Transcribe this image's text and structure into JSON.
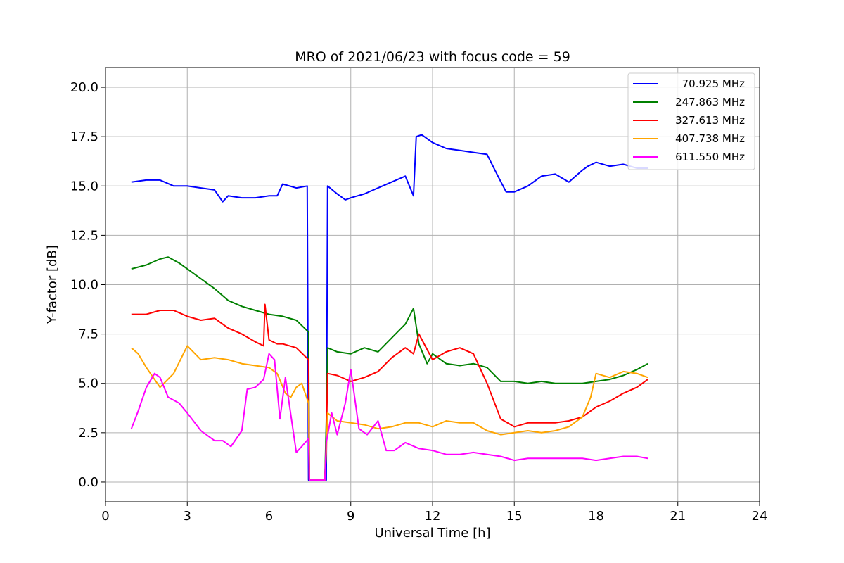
{
  "chart_data": {
    "type": "line",
    "title": "MRO of 2021/06/23 with focus code = 59",
    "xlabel": "Universal Time [h]",
    "ylabel": "Y-factor [dB]",
    "xlim": [
      0,
      24
    ],
    "ylim": [
      -1.0,
      21.0
    ],
    "xticks": [
      0,
      3,
      6,
      9,
      12,
      15,
      18,
      21,
      24
    ],
    "yticks": [
      0.0,
      2.5,
      5.0,
      7.5,
      10.0,
      12.5,
      15.0,
      17.5,
      20.0
    ],
    "xtick_labels": [
      "0",
      "3",
      "6",
      "9",
      "12",
      "15",
      "18",
      "21",
      "24"
    ],
    "ytick_labels": [
      "0.0",
      "2.5",
      "5.0",
      "7.5",
      "10.0",
      "12.5",
      "15.0",
      "17.5",
      "20.0"
    ],
    "grid": true,
    "legend_position": "top-right",
    "series": [
      {
        "name": "70.925 MHz",
        "color": "#0000ff",
        "x": [
          0.95,
          1.5,
          2.0,
          2.5,
          3.0,
          3.5,
          4.0,
          4.3,
          4.5,
          5.0,
          5.5,
          6.0,
          6.3,
          6.5,
          7.0,
          7.4,
          7.45,
          7.48,
          8.0,
          8.05,
          8.1,
          8.15,
          8.5,
          8.8,
          9.0,
          9.5,
          10.0,
          10.5,
          11.0,
          11.3,
          11.4,
          11.6,
          12.0,
          12.5,
          13.0,
          13.5,
          14.0,
          14.4,
          14.7,
          15.0,
          15.5,
          16.0,
          16.5,
          17.0,
          17.5,
          17.7,
          18.0,
          18.5,
          19.0,
          19.5,
          19.9
        ],
        "y": [
          15.2,
          15.3,
          15.3,
          15.0,
          15.0,
          14.9,
          14.8,
          14.2,
          14.5,
          14.4,
          14.4,
          14.5,
          14.5,
          15.1,
          14.9,
          15.0,
          0.1,
          0.1,
          0.1,
          0.1,
          0.1,
          15.0,
          14.6,
          14.3,
          14.4,
          14.6,
          14.9,
          15.2,
          15.5,
          14.5,
          17.5,
          17.6,
          17.2,
          16.9,
          16.8,
          16.7,
          16.6,
          15.5,
          14.7,
          14.7,
          15.0,
          15.5,
          15.6,
          15.2,
          15.8,
          16.0,
          16.2,
          16.0,
          16.1,
          15.9,
          15.9
        ]
      },
      {
        "name": "247.863 MHz",
        "color": "#008000",
        "x": [
          0.95,
          1.5,
          2.0,
          2.3,
          2.7,
          3.0,
          3.5,
          4.0,
          4.5,
          5.0,
          5.5,
          6.0,
          6.5,
          7.0,
          7.45,
          7.48,
          8.0,
          8.05,
          8.1,
          8.15,
          8.5,
          9.0,
          9.5,
          10.0,
          10.5,
          11.0,
          11.3,
          11.5,
          11.8,
          12.0,
          12.5,
          13.0,
          13.5,
          14.0,
          14.5,
          15.0,
          15.5,
          16.0,
          16.5,
          17.0,
          17.5,
          18.0,
          18.5,
          19.0,
          19.5,
          19.9
        ],
        "y": [
          10.8,
          11.0,
          11.3,
          11.4,
          11.1,
          10.8,
          10.3,
          9.8,
          9.2,
          8.9,
          8.7,
          8.5,
          8.4,
          8.2,
          7.6,
          0.1,
          0.1,
          0.1,
          3.0,
          6.8,
          6.6,
          6.5,
          6.8,
          6.6,
          7.3,
          8.0,
          8.8,
          7.0,
          6.0,
          6.5,
          6.0,
          5.9,
          6.0,
          5.8,
          5.1,
          5.1,
          5.0,
          5.1,
          5.0,
          5.0,
          5.0,
          5.1,
          5.2,
          5.4,
          5.7,
          6.0
        ]
      },
      {
        "name": "327.613 MHz",
        "color": "#ff0000",
        "x": [
          0.95,
          1.5,
          2.0,
          2.5,
          3.0,
          3.5,
          4.0,
          4.5,
          5.0,
          5.5,
          5.8,
          5.85,
          6.0,
          6.3,
          6.5,
          7.0,
          7.45,
          7.48,
          8.0,
          8.05,
          8.1,
          8.15,
          8.5,
          9.0,
          9.5,
          10.0,
          10.5,
          11.0,
          11.3,
          11.5,
          12.0,
          12.5,
          13.0,
          13.5,
          14.0,
          14.5,
          15.0,
          15.5,
          16.0,
          16.5,
          17.0,
          17.5,
          18.0,
          18.5,
          19.0,
          19.5,
          19.9
        ],
        "y": [
          8.5,
          8.5,
          8.7,
          8.7,
          8.4,
          8.2,
          8.3,
          7.8,
          7.5,
          7.1,
          6.9,
          9.0,
          7.2,
          7.0,
          7.0,
          6.8,
          6.2,
          0.1,
          0.1,
          0.1,
          2.0,
          5.5,
          5.4,
          5.1,
          5.3,
          5.6,
          6.3,
          6.8,
          6.5,
          7.5,
          6.2,
          6.6,
          6.8,
          6.5,
          5.0,
          3.2,
          2.8,
          3.0,
          3.0,
          3.0,
          3.1,
          3.3,
          3.8,
          4.1,
          4.5,
          4.8,
          5.2
        ]
      },
      {
        "name": "407.738 MHz",
        "color": "#ffa500",
        "x": [
          0.95,
          1.2,
          1.5,
          2.0,
          2.5,
          3.0,
          3.5,
          4.0,
          4.5,
          5.0,
          5.5,
          6.0,
          6.3,
          6.6,
          6.8,
          7.0,
          7.2,
          7.45,
          7.48,
          8.0,
          8.05,
          8.1,
          8.15,
          8.5,
          9.0,
          9.5,
          10.0,
          10.5,
          11.0,
          11.5,
          12.0,
          12.5,
          13.0,
          13.5,
          14.0,
          14.5,
          15.0,
          15.5,
          16.0,
          16.5,
          17.0,
          17.5,
          17.8,
          18.0,
          18.5,
          19.0,
          19.5,
          19.9
        ],
        "y": [
          6.8,
          6.5,
          5.8,
          4.8,
          5.5,
          6.9,
          6.2,
          6.3,
          6.2,
          6.0,
          5.9,
          5.8,
          5.5,
          4.5,
          4.3,
          4.8,
          5.0,
          4.0,
          0.1,
          0.1,
          0.1,
          1.5,
          3.5,
          3.1,
          3.0,
          2.9,
          2.7,
          2.8,
          3.0,
          3.0,
          2.8,
          3.1,
          3.0,
          3.0,
          2.6,
          2.4,
          2.5,
          2.6,
          2.5,
          2.6,
          2.8,
          3.3,
          4.3,
          5.5,
          5.3,
          5.6,
          5.5,
          5.3
        ]
      },
      {
        "name": "611.550 MHz",
        "color": "#ff00ff",
        "x": [
          0.95,
          1.2,
          1.5,
          1.8,
          2.0,
          2.3,
          2.7,
          3.0,
          3.5,
          4.0,
          4.3,
          4.6,
          5.0,
          5.2,
          5.5,
          5.8,
          6.0,
          6.2,
          6.4,
          6.6,
          7.0,
          7.2,
          7.45,
          7.48,
          8.0,
          8.05,
          8.1,
          8.3,
          8.5,
          8.8,
          9.0,
          9.3,
          9.6,
          10.0,
          10.3,
          10.6,
          11.0,
          11.5,
          12.0,
          12.5,
          13.0,
          13.5,
          14.0,
          14.5,
          15.0,
          15.5,
          16.0,
          16.5,
          17.0,
          17.5,
          18.0,
          18.5,
          19.0,
          19.5,
          19.9
        ],
        "y": [
          2.7,
          3.6,
          4.8,
          5.5,
          5.3,
          4.3,
          4.0,
          3.5,
          2.6,
          2.1,
          2.1,
          1.8,
          2.6,
          4.7,
          4.8,
          5.2,
          6.5,
          6.2,
          3.2,
          5.3,
          1.5,
          1.8,
          2.2,
          0.1,
          0.1,
          0.1,
          2.0,
          3.5,
          2.4,
          4.0,
          5.7,
          2.7,
          2.4,
          3.1,
          1.6,
          1.6,
          2.0,
          1.7,
          1.6,
          1.4,
          1.4,
          1.5,
          1.4,
          1.3,
          1.1,
          1.2,
          1.2,
          1.2,
          1.2,
          1.2,
          1.1,
          1.2,
          1.3,
          1.3,
          1.2
        ]
      }
    ]
  }
}
